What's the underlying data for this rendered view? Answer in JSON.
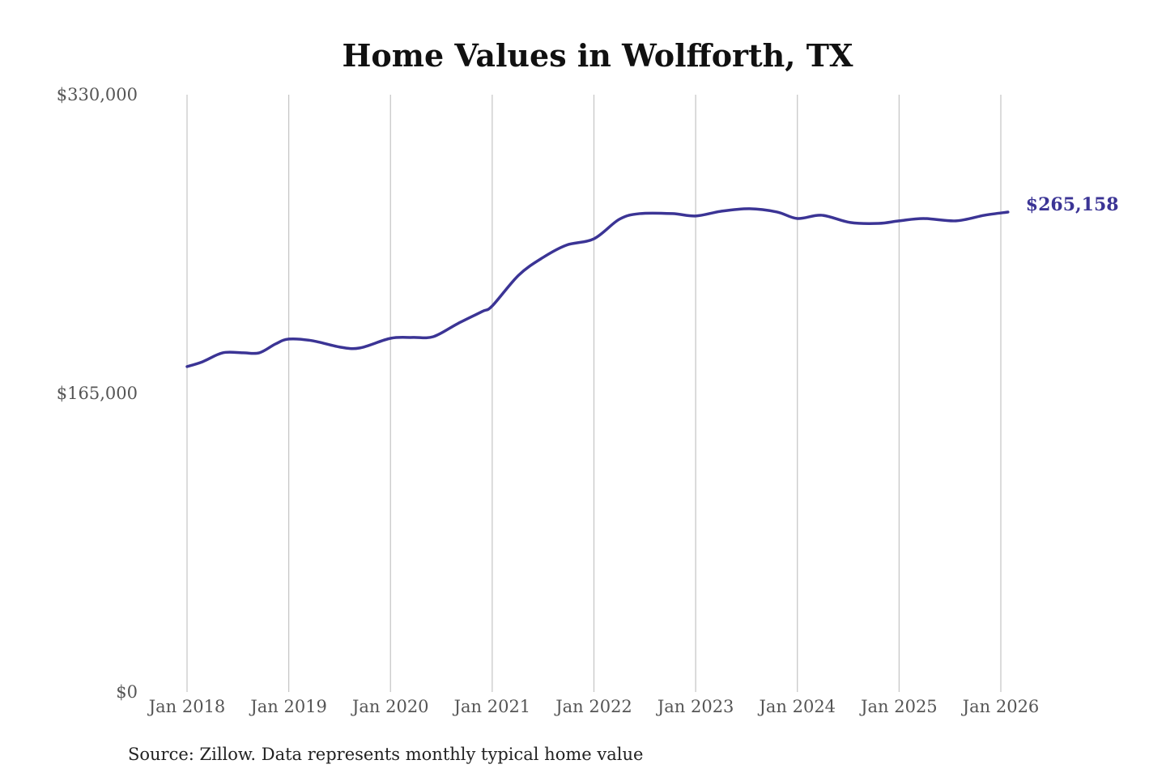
{
  "chart_data": {
    "type": "line",
    "title": "Home Values in Wolfforth, TX",
    "xlabel": "",
    "ylabel": "",
    "source": "Source: Zillow. Data represents monthly typical home value",
    "ylim": [
      0,
      330000
    ],
    "xlim": [
      2018.0,
      2026.0
    ],
    "y_ticks": [
      {
        "value": 0,
        "label": "$0"
      },
      {
        "value": 165000,
        "label": "$165,000"
      },
      {
        "value": 330000,
        "label": "$330,000"
      }
    ],
    "x_ticks": [
      {
        "value": 2018,
        "label": "Jan 2018"
      },
      {
        "value": 2019,
        "label": "Jan 2019"
      },
      {
        "value": 2020,
        "label": "Jan 2020"
      },
      {
        "value": 2021,
        "label": "Jan 2021"
      },
      {
        "value": 2022,
        "label": "Jan 2022"
      },
      {
        "value": 2023,
        "label": "Jan 2023"
      },
      {
        "value": 2024,
        "label": "Jan 2024"
      },
      {
        "value": 2025,
        "label": "Jan 2025"
      },
      {
        "value": 2026,
        "label": "Jan 2026"
      }
    ],
    "grid": "vertical",
    "series": [
      {
        "name": "Typical home value",
        "color": "#3b3495",
        "end_label": "$265,158",
        "points": [
          [
            2018.0,
            179800
          ],
          [
            2018.15,
            182400
          ],
          [
            2018.35,
            187400
          ],
          [
            2018.55,
            187400
          ],
          [
            2018.71,
            187400
          ],
          [
            2018.87,
            192300
          ],
          [
            2019.0,
            195000
          ],
          [
            2019.23,
            194100
          ],
          [
            2019.51,
            190500
          ],
          [
            2019.7,
            190100
          ],
          [
            2020.0,
            195400
          ],
          [
            2020.22,
            195900
          ],
          [
            2020.42,
            196300
          ],
          [
            2020.66,
            203500
          ],
          [
            2020.9,
            210200
          ],
          [
            2021.0,
            213300
          ],
          [
            2021.26,
            230300
          ],
          [
            2021.5,
            240100
          ],
          [
            2021.73,
            246900
          ],
          [
            2022.0,
            250400
          ],
          [
            2022.25,
            261200
          ],
          [
            2022.45,
            264300
          ],
          [
            2022.77,
            264300
          ],
          [
            2023.0,
            263000
          ],
          [
            2023.25,
            265600
          ],
          [
            2023.53,
            267000
          ],
          [
            2023.8,
            265200
          ],
          [
            2024.0,
            261600
          ],
          [
            2024.24,
            263400
          ],
          [
            2024.52,
            259400
          ],
          [
            2024.8,
            258900
          ],
          [
            2025.0,
            260300
          ],
          [
            2025.24,
            261600
          ],
          [
            2025.56,
            260300
          ],
          [
            2025.84,
            263400
          ],
          [
            2026.07,
            265158
          ]
        ]
      }
    ]
  }
}
